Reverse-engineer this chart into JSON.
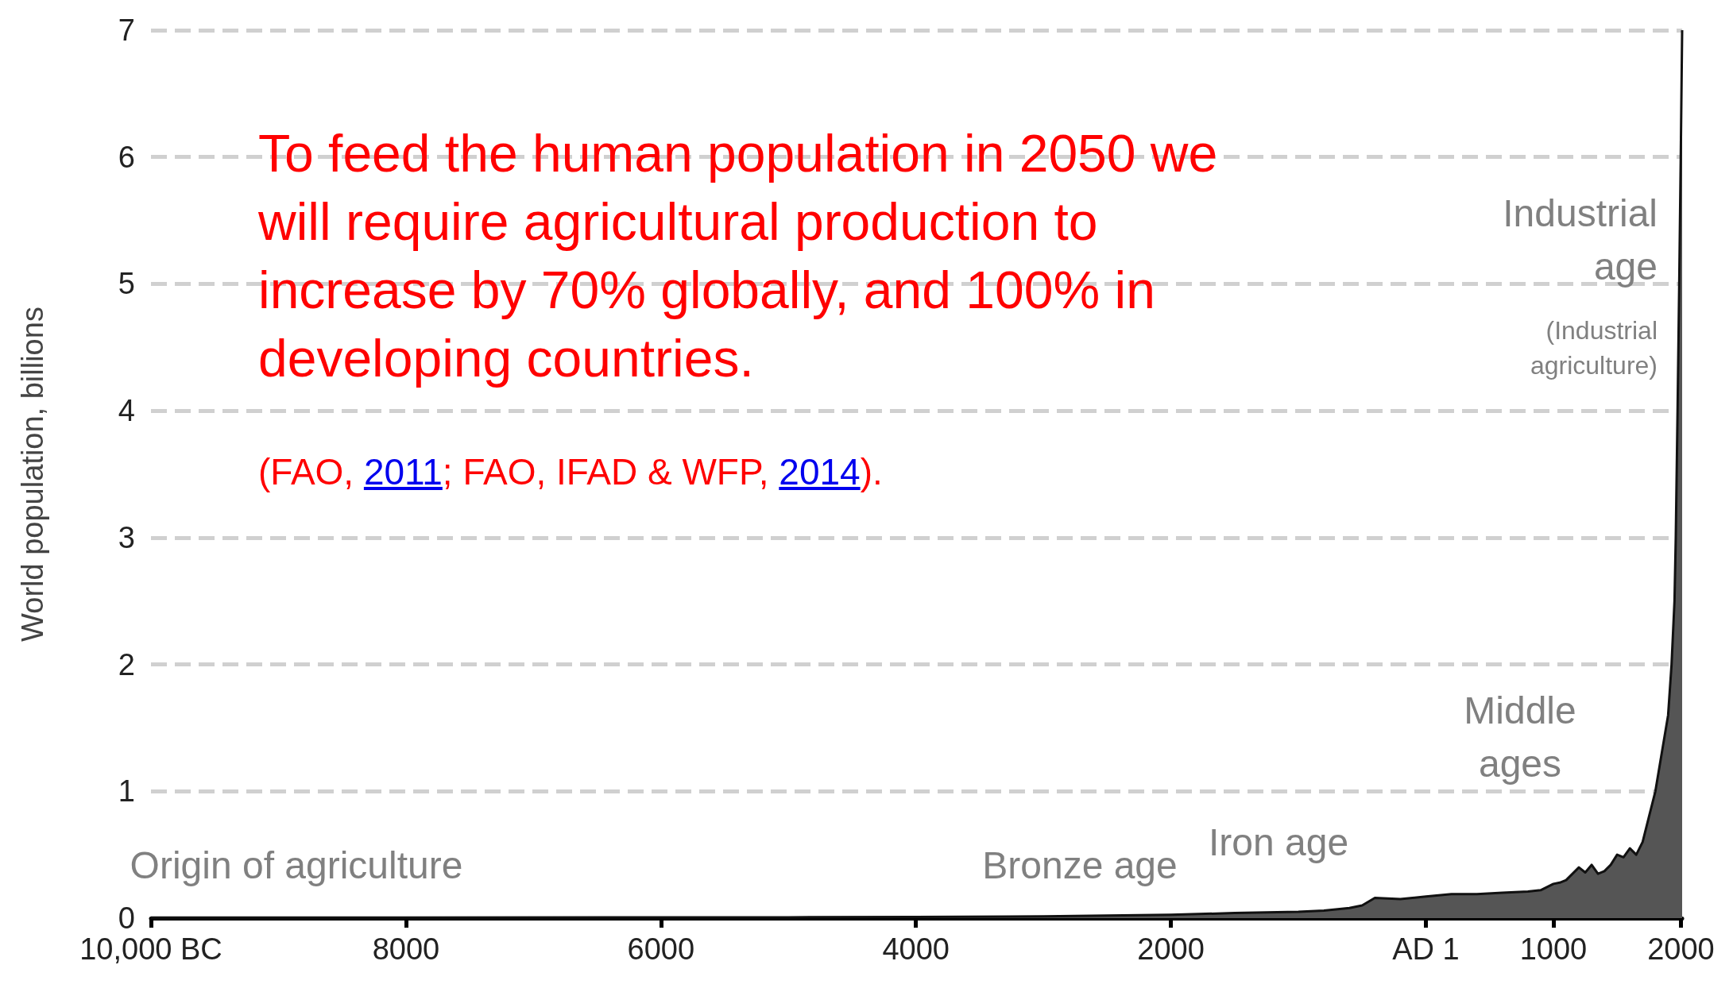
{
  "chart_data": {
    "type": "area",
    "ylabel": "World population, billions",
    "x": [
      -10000,
      -8000,
      -6000,
      -5000,
      -4000,
      -3000,
      -2000,
      -1500,
      -1000,
      -800,
      -600,
      -500,
      -450,
      -400,
      -200,
      1,
      200,
      400,
      600,
      800,
      900,
      1000,
      1050,
      1100,
      1150,
      1200,
      1250,
      1300,
      1350,
      1400,
      1450,
      1500,
      1550,
      1600,
      1650,
      1700,
      1750,
      1800,
      1850,
      1900,
      1927,
      1950,
      1960,
      1974,
      1987,
      1999,
      2010
    ],
    "series": [
      {
        "color": "#555555",
        "values": [
          0.004,
          0.005,
          0.006,
          0.007,
          0.009,
          0.014,
          0.027,
          0.04,
          0.05,
          0.06,
          0.08,
          0.1,
          0.13,
          0.16,
          0.15,
          0.17,
          0.19,
          0.19,
          0.2,
          0.21,
          0.22,
          0.27,
          0.28,
          0.3,
          0.35,
          0.4,
          0.36,
          0.42,
          0.35,
          0.37,
          0.42,
          0.5,
          0.48,
          0.55,
          0.5,
          0.6,
          0.8,
          1.0,
          1.3,
          1.6,
          2.0,
          2.5,
          3.0,
          4.0,
          5.0,
          6.0,
          7.0
        ]
      }
    ],
    "xlim": [
      -10000,
      2010
    ],
    "xticks": [
      {
        "value": -10000,
        "label": "10,000 BC"
      },
      {
        "value": -8000,
        "label": "8000"
      },
      {
        "value": -6000,
        "label": "6000"
      },
      {
        "value": -4000,
        "label": "4000"
      },
      {
        "value": -2000,
        "label": "2000"
      },
      {
        "value": 0,
        "label": "AD 1"
      },
      1000,
      2000
    ],
    "ylim": [
      0,
      7
    ],
    "yticks": [
      0,
      1,
      2,
      3,
      4,
      5,
      6,
      7
    ],
    "grid": "y",
    "annotations": [
      "To feed the human population in 2050 we will require agricultural production to increase by 70% globally, and 100% in developing countries.",
      "(FAO, 2011; FAO, IFAD & WFP, 2014).",
      "Origin of agriculture",
      "Bronze age",
      "Iron age",
      "Middle\nages",
      "Industrial\nage",
      "(Industrial\nagriculture)"
    ]
  }
}
